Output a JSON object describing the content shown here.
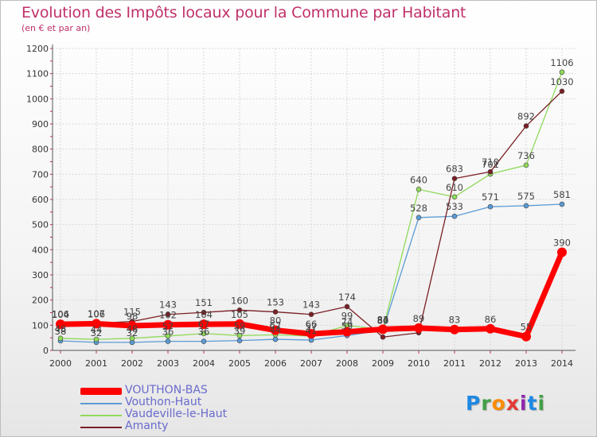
{
  "chart_data": {
    "type": "line",
    "title": "Evolution des Impôts locaux pour la Commune par Habitant",
    "subtitle": "(en € et par an)",
    "xlabel": "",
    "ylabel": "",
    "x": [
      "2000",
      "2001",
      "2002",
      "2003",
      "2004",
      "2005",
      "2006",
      "2007",
      "2008",
      "2009",
      "2010",
      "2011",
      "2012",
      "2013",
      "2014"
    ],
    "ylim": [
      0,
      1200
    ],
    "yticks": [
      0,
      100,
      200,
      300,
      400,
      500,
      600,
      700,
      800,
      900,
      1000,
      1100,
      1200
    ],
    "grid": true,
    "series": [
      {
        "name": "VOUTHON-BAS",
        "color": "#ff0000",
        "values": [
          104,
          106,
          98,
          102,
          104,
          105,
          80,
          66,
          74,
          84,
          89,
          83,
          86,
          55,
          390
        ],
        "labels": [
          "104",
          "106",
          "98",
          "102",
          "104",
          "105",
          "80",
          "66",
          "74",
          "84",
          "89",
          "83",
          "86",
          "55",
          "390"
        ]
      },
      {
        "name": "Vouthon-Haut",
        "color": "#5b9bd5",
        "values": [
          38,
          32,
          32,
          36,
          36,
          39,
          44,
          41,
          59,
          80,
          528,
          533,
          571,
          575,
          581
        ],
        "labels": [
          "38",
          "32",
          "32",
          "36",
          "36",
          "39",
          "44",
          "41",
          "59",
          "80",
          "528",
          "533",
          "571",
          "575",
          "581"
        ]
      },
      {
        "name": "Vaudeville-le-Haut",
        "color": "#8fd95a",
        "values": [
          48,
          44,
          48,
          57,
          67,
          59,
          62,
          57,
          99,
          83,
          640,
          610,
          701,
          736,
          1106
        ],
        "labels": [
          "48",
          "44",
          "48",
          "57",
          "67",
          "59",
          "62",
          "57",
          "99",
          "83",
          "640",
          "610",
          "701",
          "736",
          "1106"
        ]
      },
      {
        "name": "Amanty",
        "color": "#7b1f24",
        "values": [
          106,
          107,
          115,
          143,
          151,
          160,
          153,
          143,
          174,
          53,
          70,
          683,
          710,
          892,
          1030
        ],
        "labels": [
          "106",
          "107",
          "115",
          "143",
          "151",
          "160",
          "153",
          "143",
          "174",
          "",
          "",
          "683",
          "710",
          "892",
          "1030"
        ]
      }
    ]
  },
  "legend": {
    "items": [
      "VOUTHON-BAS",
      "Vouthon-Haut",
      "Vaudeville-le-Haut",
      "Amanty"
    ]
  },
  "logo": {
    "text": "Proxiti"
  }
}
